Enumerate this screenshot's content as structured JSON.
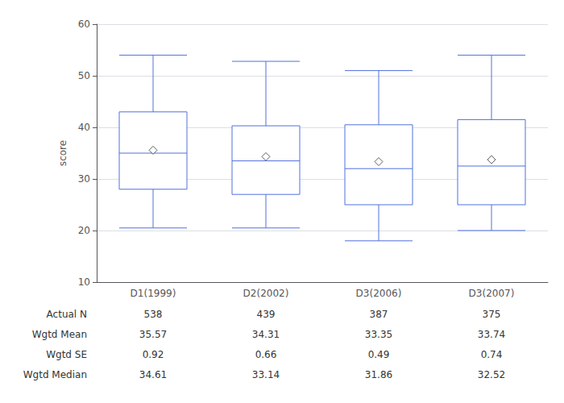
{
  "chart_data": {
    "type": "box",
    "categories": [
      "D1(1999)",
      "D2(2002)",
      "D3(2006)",
      "D3(2007)"
    ],
    "boxes": [
      {
        "q1": 28.0,
        "median": 35.0,
        "q3": 43.0,
        "whisker_low": 20.5,
        "whisker_high": 54.0,
        "mean": 35.57
      },
      {
        "q1": 27.0,
        "median": 33.5,
        "q3": 40.3,
        "whisker_low": 20.5,
        "whisker_high": 52.8,
        "mean": 34.31
      },
      {
        "q1": 25.0,
        "median": 32.0,
        "q3": 40.5,
        "whisker_low": 18.0,
        "whisker_high": 51.0,
        "mean": 33.35
      },
      {
        "q1": 25.0,
        "median": 32.5,
        "q3": 41.5,
        "whisker_low": 20.0,
        "whisker_high": 54.0,
        "mean": 33.74
      }
    ],
    "table": {
      "row_labels": [
        "Actual N",
        "Wgtd Mean",
        "Wgtd SE",
        "Wgtd Median"
      ],
      "rows": [
        [
          "538",
          "439",
          "387",
          "375"
        ],
        [
          "35.57",
          "34.31",
          "33.35",
          "33.74"
        ],
        [
          "0.92",
          "0.66",
          "0.49",
          "0.74"
        ],
        [
          "34.61",
          "33.14",
          "31.86",
          "32.52"
        ]
      ]
    },
    "ylabel": "score",
    "ylim": [
      10,
      60
    ],
    "yticks": [
      10,
      20,
      30,
      40,
      50,
      60
    ],
    "grid": true
  }
}
